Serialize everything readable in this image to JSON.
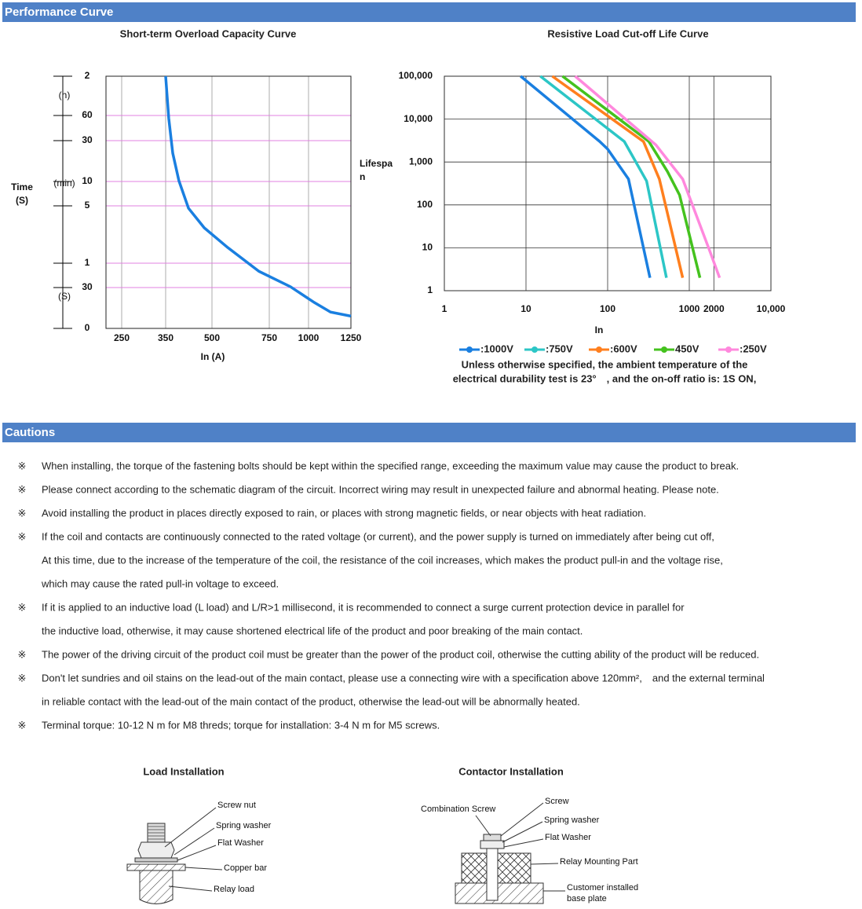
{
  "sections": {
    "performance": "Performance Curve",
    "cautions": "Cautions"
  },
  "chart_data": [
    {
      "type": "line",
      "title": "Short-term Overload Capacity Curve",
      "x_label": "In (A)",
      "y_label_lines": [
        "Time",
        "(S)"
      ],
      "unit_labels": [
        "(h)",
        "(min)",
        "(S)"
      ],
      "x": [
        350,
        360,
        373,
        393,
        424,
        475,
        568,
        705,
        885,
        1034,
        1130,
        1250
      ],
      "series": [
        {
          "color": "#1a7fe0",
          "values": [
            7200,
            3400,
            1430,
            620,
            290,
            208,
            126,
            50,
            31,
            19,
            12,
            9
          ]
        }
      ],
      "xlim": [
        214,
        1250
      ],
      "xticks": [
        250,
        350,
        500,
        750,
        1000,
        1250
      ],
      "ylim": [
        0,
        7200
      ],
      "yticks": [
        {
          "value": 7200,
          "label": "2"
        },
        {
          "value": 3600,
          "label": "60"
        },
        {
          "value": 1800,
          "label": "30"
        },
        {
          "value": 600,
          "label": "10"
        },
        {
          "value": 300,
          "label": "5"
        },
        {
          "value": 60,
          "label": "1"
        },
        30,
        0
      ],
      "grid": true,
      "grid_color": "#e080e0"
    },
    {
      "type": "line",
      "title": "Resistive Load Cut-off Life Curve",
      "x_label": "In",
      "y_label": "Lifespan",
      "log_x": true,
      "log_y": true,
      "grid": true,
      "xlim": [
        1,
        10000
      ],
      "xticks": [
        1,
        10,
        100,
        1000,
        2000,
        {
          "value": 10000,
          "label": "10,000"
        }
      ],
      "ylim": [
        1,
        100000
      ],
      "yticks": [
        1,
        10,
        100,
        {
          "value": 1000,
          "label": "1,000"
        },
        {
          "value": 10000,
          "label": "10,000"
        },
        {
          "value": 100000,
          "label": "100,000"
        }
      ],
      "series": [
        {
          "name": ":1000V",
          "color": "#1a7fe0",
          "x": [
            8.6,
            80,
            100,
            180,
            330
          ],
          "values": [
            100000,
            3000,
            2000,
            400,
            2
          ]
        },
        {
          "name": ":750V",
          "color": "#2cc6c6",
          "x": [
            15,
            160,
            300,
            525
          ],
          "values": [
            100000,
            3000,
            360,
            2
          ]
        },
        {
          "name": ":600V",
          "color": "#ff7f1e",
          "x": [
            21,
            275,
            430,
            830
          ],
          "values": [
            100000,
            3000,
            400,
            2
          ]
        },
        {
          "name": "450V",
          "color": "#44c21e",
          "x": [
            28,
            320,
            540,
            760,
            1350
          ],
          "values": [
            100000,
            3000,
            600,
            170,
            2
          ]
        },
        {
          "name": ":250V",
          "color": "#ff88dd",
          "x": [
            40,
            390,
            830,
            1800,
            2350
          ],
          "values": [
            100000,
            2500,
            400,
            8,
            2
          ]
        }
      ],
      "notes": [
        "Unless otherwise specified, the ambient temperature of the",
        "electrical durability test is 23°　, and the on-off ratio is: 1S ON,"
      ]
    }
  ],
  "cautions": {
    "bullet": "※",
    "items": [
      [
        "When installing, the torque of the fastening bolts should be kept within the specified range, exceeding the maximum value may cause the product to break."
      ],
      [
        "Please connect according to the schematic diagram of the circuit. Incorrect wiring may result in unexpected failure and abnormal heating. Please note."
      ],
      [
        "Avoid installing the product in places directly exposed to rain, or places with strong magnetic fields, or near objects with heat radiation."
      ],
      [
        "If the coil and contacts are continuously connected to the rated voltage (or current), and the power supply is turned on immediately after being cut off,",
        "At this time, due to the increase of the temperature of the coil, the resistance of the coil increases, which makes the product pull-in and the voltage rise,",
        "which may cause the rated pull-in voltage to exceed."
      ],
      [
        "If it is applied to an inductive load (L load) and L/R>1 millisecond, it is recommended to connect a surge current protection device in parallel for",
        "the inductive load, otherwise, it may cause shortened electrical life of the product and poor breaking of the main contact."
      ],
      [
        "The power of the driving circuit of the product coil must be greater than the power of the product coil, otherwise the cutting ability of the product will be reduced."
      ],
      [
        "Don't let sundries and oil stains on the lead-out of the main contact, please use a connecting wire with a specification above 120mm²,　and the external terminal",
        "in reliable contact with the lead-out of the main contact of the product, otherwise the lead-out will be abnormally heated."
      ],
      [
        "Terminal torque: 10-12 N m for M8 threds; torque for installation: 3-4 N m for M5 screws."
      ]
    ]
  },
  "installations": [
    {
      "title": "Load Installation",
      "labels": [
        "Screw nut",
        "Spring washer",
        "Flat Washer",
        "Copper bar",
        "Relay load"
      ]
    },
    {
      "title": "Contactor Installation",
      "labels": [
        "Combination Screw",
        "Screw",
        "Spring washer",
        "Flat Washer",
        "Relay Mounting Part",
        "Customer installed",
        "base plate"
      ]
    }
  ]
}
